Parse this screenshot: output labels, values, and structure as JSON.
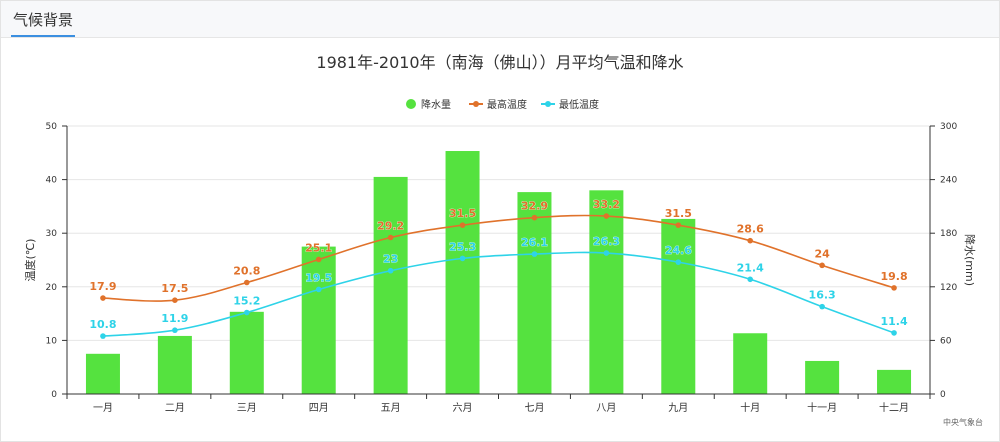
{
  "panel": {
    "tab_label": "气候背景"
  },
  "chart_data": {
    "type": "bar+line",
    "title": "1981年-2010年（南海（佛山））月平均气温和降水",
    "categories": [
      "一月",
      "二月",
      "三月",
      "四月",
      "五月",
      "六月",
      "七月",
      "八月",
      "九月",
      "十月",
      "十一月",
      "十二月"
    ],
    "ylabel_left": "温度(℃)",
    "ylabel_right": "降水(mm)",
    "ylim_left": [
      0,
      50
    ],
    "ylim_right": [
      0,
      300
    ],
    "yticks_left": [
      0,
      10,
      20,
      30,
      40,
      50
    ],
    "yticks_right": [
      0,
      60,
      120,
      180,
      240,
      300
    ],
    "grid": true,
    "legend_position": "top-center",
    "series": [
      {
        "name": "降水量",
        "type": "bar",
        "axis": "right",
        "color": "#55e23f",
        "values": [
          45,
          65,
          92,
          165,
          243,
          272,
          226,
          228,
          196,
          68,
          37,
          27
        ]
      },
      {
        "name": "最高温度",
        "type": "line",
        "axis": "left",
        "color": "#e0722b",
        "values": [
          17.9,
          17.5,
          20.8,
          25.1,
          29.2,
          31.5,
          32.9,
          33.2,
          31.5,
          28.6,
          24,
          19.8
        ],
        "labels": [
          "17.9",
          "17.5",
          "20.8",
          "25.1",
          "29.2",
          "31.5",
          "32.9",
          "33.2",
          "31.5",
          "28.6",
          "24",
          "19.8"
        ]
      },
      {
        "name": "最低温度",
        "type": "line",
        "axis": "left",
        "color": "#2ed3e8",
        "values": [
          10.8,
          11.9,
          15.2,
          19.5,
          23,
          25.3,
          26.1,
          26.3,
          24.6,
          21.4,
          16.3,
          11.4
        ],
        "labels": [
          "10.8",
          "11.9",
          "15.2",
          "19.5",
          "23",
          "25.3",
          "26.1",
          "26.3",
          "24.6",
          "21.4",
          "16.3",
          "11.4"
        ]
      }
    ],
    "source": "中央气象台"
  }
}
